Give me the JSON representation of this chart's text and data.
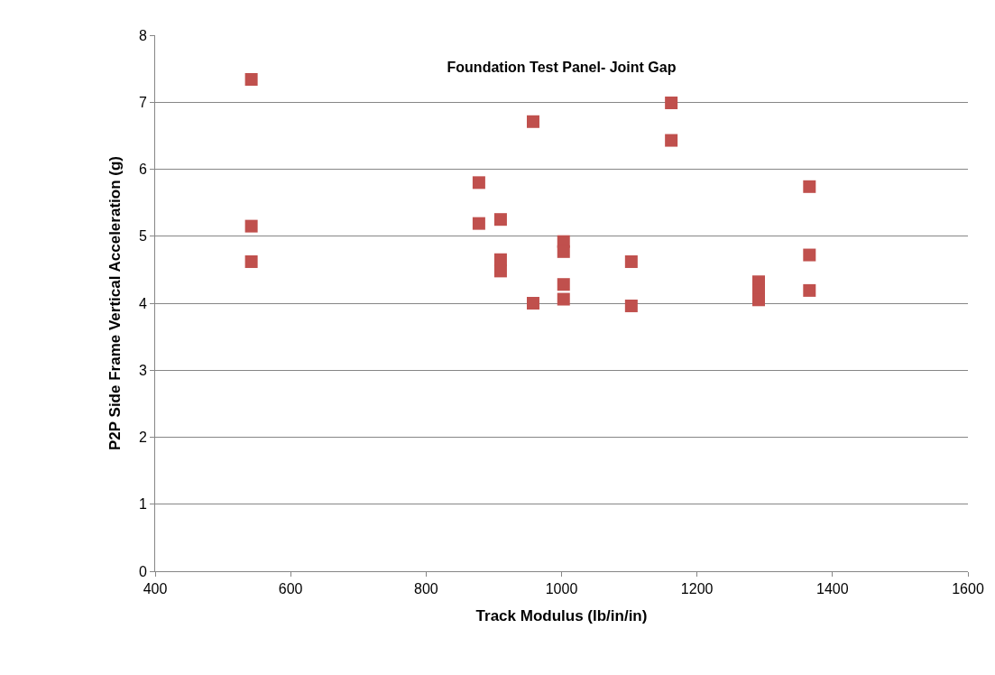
{
  "chart_data": {
    "type": "scatter",
    "title": "Foundation Test Panel- Joint Gap",
    "xlabel": "Track Modulus (lb/in/in)",
    "ylabel": "P2P Side Frame Vertical Acceleration (g)",
    "series": [
      {
        "color": "#c0504d",
        "x": [
          542,
          542,
          542,
          878,
          878,
          910,
          910,
          910,
          958,
          958,
          1003,
          1003,
          1003,
          1003,
          1103,
          1103,
          1162,
          1162,
          1291,
          1291,
          1291,
          1366,
          1366,
          1366
        ],
        "values": [
          7.34,
          5.15,
          4.62,
          5.8,
          5.19,
          5.25,
          4.65,
          4.48,
          6.71,
          4.0,
          4.92,
          4.77,
          4.28,
          4.06,
          4.62,
          3.96,
          6.99,
          6.43,
          4.32,
          4.18,
          4.05,
          5.74,
          4.72,
          4.19
        ]
      }
    ],
    "xlim": [
      400,
      1600
    ],
    "xticks": [
      400,
      600,
      800,
      1000,
      1200,
      1400,
      1600
    ],
    "ylim": [
      0,
      8
    ],
    "yticks": [
      0,
      1,
      2,
      3,
      4,
      5,
      6,
      7,
      8
    ],
    "grid": "y",
    "marker": "square"
  }
}
